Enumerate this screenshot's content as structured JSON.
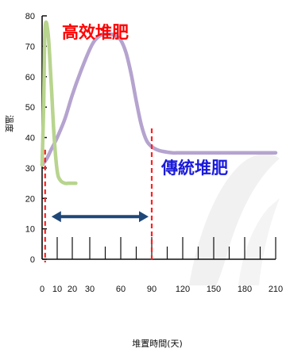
{
  "chart_data": {
    "type": "line",
    "title": "",
    "xlabel": "堆置時間(天)",
    "ylabel": "溫度",
    "xlim": [
      0,
      210
    ],
    "ylim": [
      0,
      80
    ],
    "x_ticks": [
      0,
      10,
      20,
      30,
      60,
      90,
      120,
      150,
      180,
      210
    ],
    "x_tick_labels": [
      "0",
      "10",
      "20",
      "30",
      "60",
      "90",
      "120",
      "150",
      "180",
      "210"
    ],
    "y_ticks": [
      0,
      10,
      20,
      30,
      40,
      50,
      60,
      70,
      80
    ],
    "y_tick_labels": [
      "0",
      "10",
      "20",
      "30",
      "40",
      "50",
      "60",
      "70",
      "80"
    ],
    "grid": false,
    "series": [
      {
        "color": "#b5a3cf",
        "x": [
          0,
          3,
          6,
          10,
          15,
          20,
          25,
          30,
          35,
          40,
          45,
          50,
          55,
          60,
          65,
          70,
          75,
          80,
          85,
          90,
          95,
          100,
          110,
          120,
          150,
          180,
          210
        ],
        "y": [
          31,
          33,
          36,
          40,
          46,
          54,
          62,
          69,
          72,
          73.5,
          74,
          74,
          73.5,
          72,
          68,
          61,
          52,
          44,
          39,
          37,
          36,
          35.5,
          35,
          35,
          35,
          35,
          35
        ]
      },
      {
        "color": "#b8d48e",
        "x": [
          0,
          1,
          2,
          4,
          6,
          8,
          10,
          12,
          15,
          18,
          22
        ],
        "y": [
          31,
          50,
          76,
          74,
          58,
          40,
          29,
          26,
          25,
          25,
          25
        ]
      }
    ],
    "annotations": [
      {
        "text": "高效堆肥",
        "color": "#ff0000"
      },
      {
        "text": "傳統堆肥",
        "color": "#1a1adc"
      }
    ],
    "vlines": [
      {
        "x": 2,
        "color": "#ff2020",
        "style": "dashed",
        "y_top": 36
      },
      {
        "x": 90,
        "color": "#ff2020",
        "style": "dashed",
        "y_top": 43
      }
    ],
    "range_arrow": {
      "x_start": 2,
      "x_end": 90,
      "y": 14,
      "color": "#1f4878"
    }
  }
}
